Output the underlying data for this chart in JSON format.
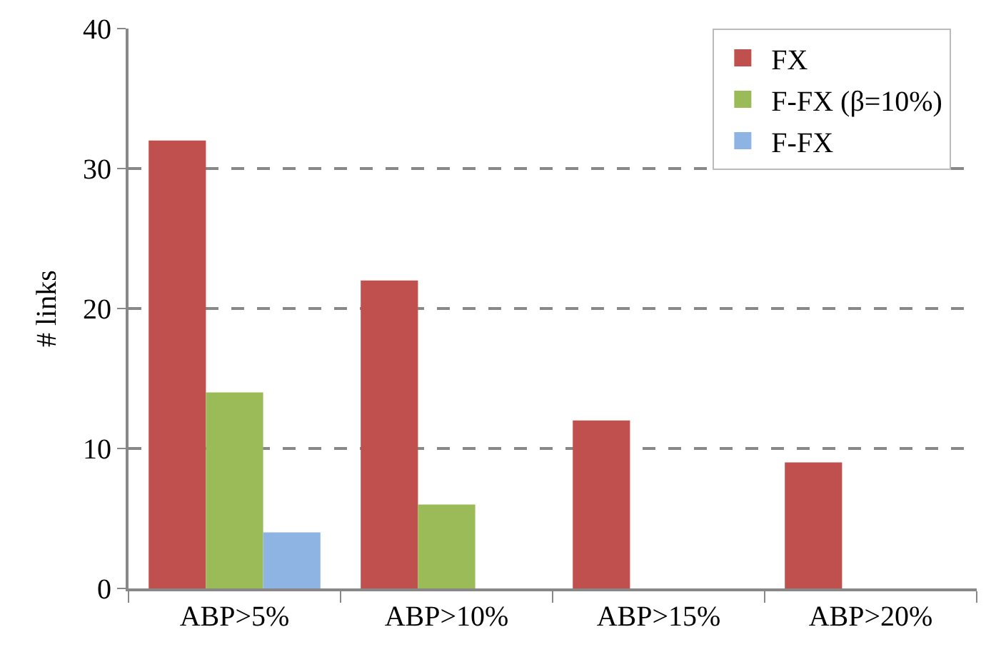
{
  "chart_data": {
    "type": "bar",
    "ylabel": "# links",
    "categories": [
      "ABP>5%",
      "ABP>10%",
      "ABP>15%",
      "ABP>20%"
    ],
    "series": [
      {
        "name": "FX",
        "color": "#c0504d",
        "values": [
          32,
          22,
          12,
          9
        ]
      },
      {
        "name": "F-FX (β=10%)",
        "color": "#9bbb59",
        "values": [
          14,
          6,
          0,
          0
        ]
      },
      {
        "name": "F-FX",
        "color": "#8eb4e3",
        "values": [
          4,
          0,
          0,
          0
        ]
      }
    ],
    "ylim": [
      0,
      40
    ],
    "yticks": [
      0,
      10,
      20,
      30,
      40
    ],
    "grid": "y",
    "legend": "top right"
  }
}
